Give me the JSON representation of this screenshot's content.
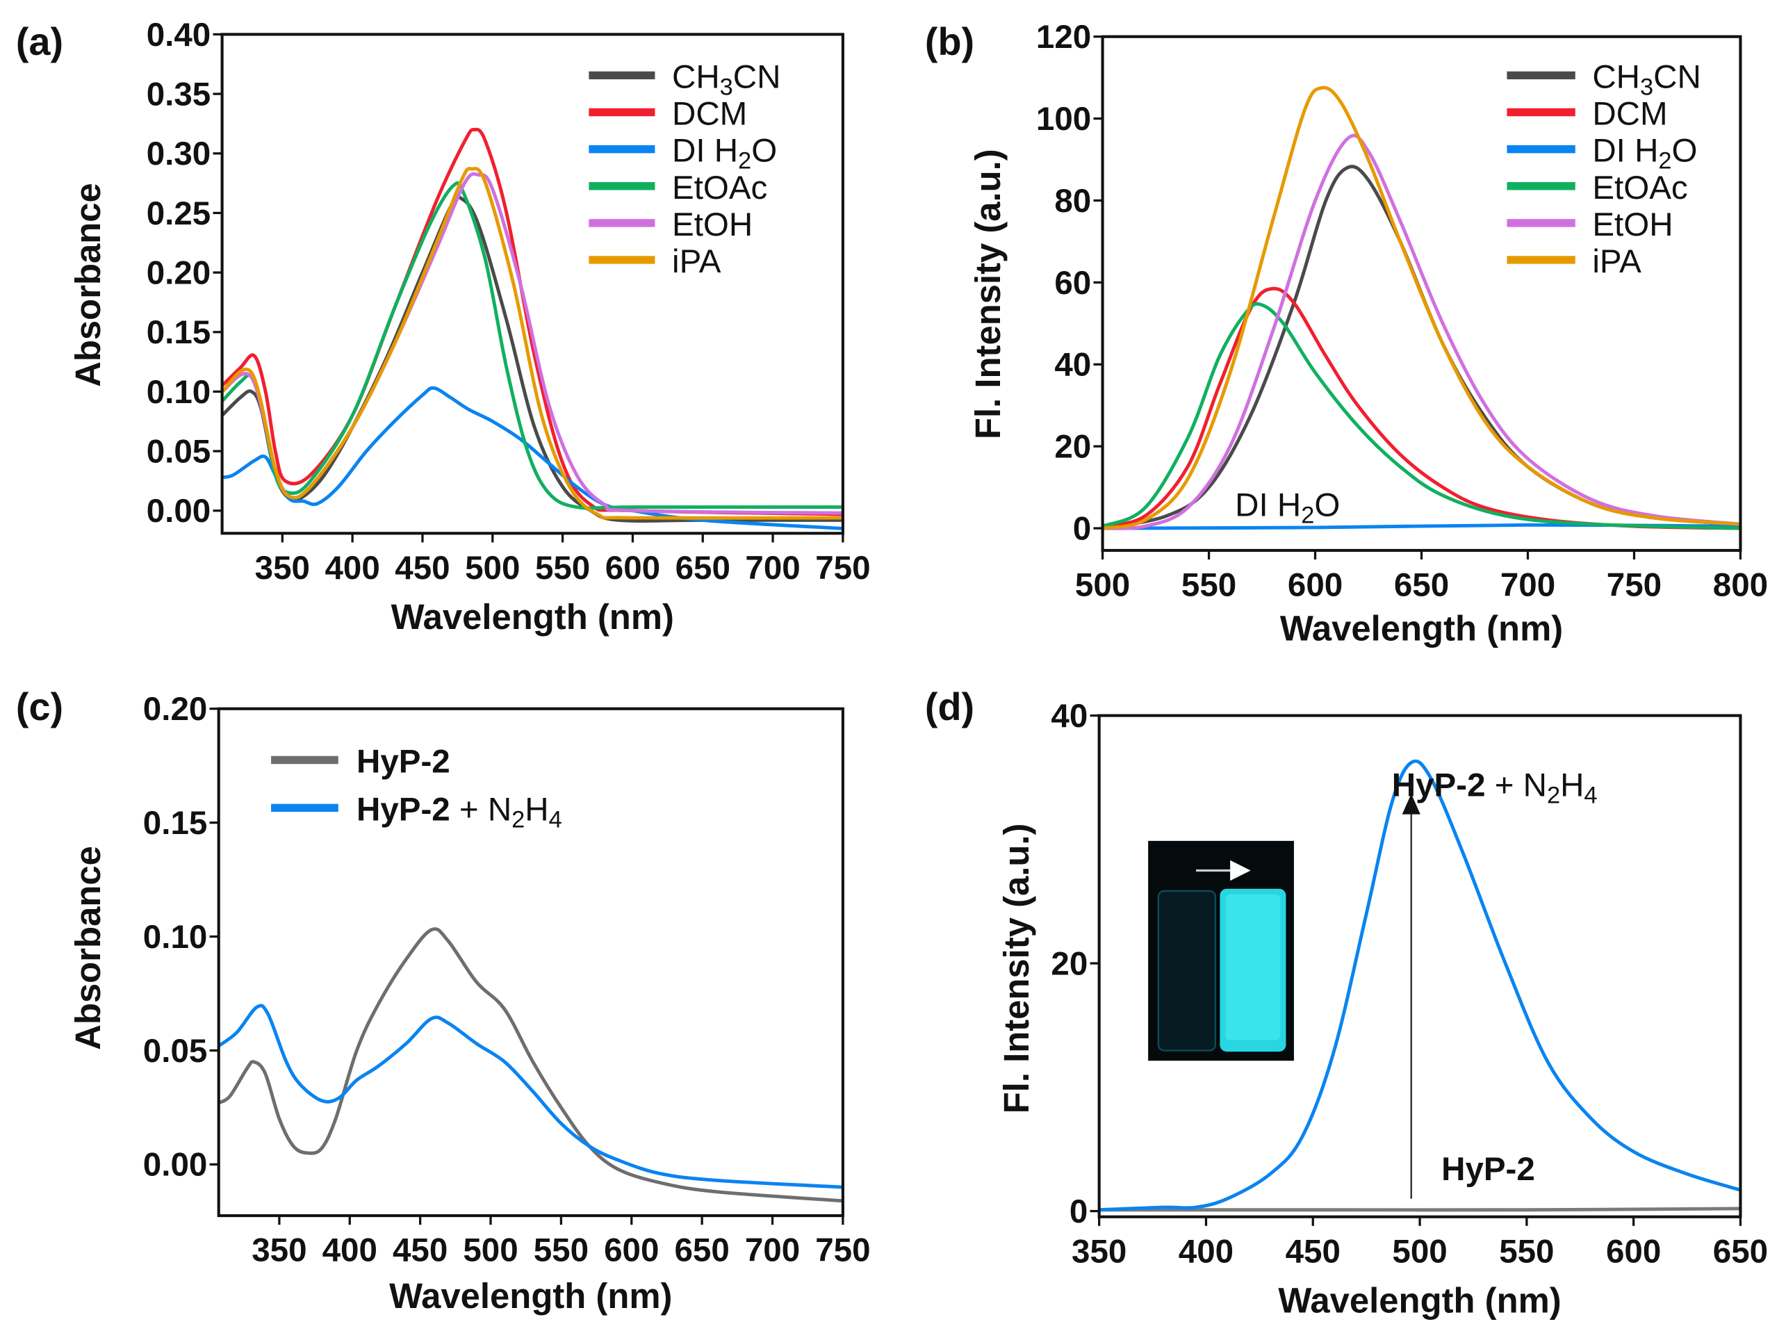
{
  "chart_data": [
    {
      "panel": "(a)",
      "type": "line",
      "xlabel": "Wavelength (nm)",
      "ylabel": "Absorbance",
      "xlim": [
        307,
        750
      ],
      "ylim": [
        -0.019,
        0.4
      ],
      "xticks": [
        "350",
        "400",
        "450",
        "500",
        "550",
        "600",
        "650",
        "700",
        "750"
      ],
      "yticks": [
        "0.00",
        "0.05",
        "0.10",
        "0.15",
        "0.20",
        "0.25",
        "0.30",
        "0.35",
        "0.40"
      ],
      "legend_position": "top-right",
      "legend_bold": false,
      "series": [
        {
          "name": "CH3CN",
          "label": [
            {
              "t": "CH"
            },
            {
              "t": "3",
              "sub": true
            },
            {
              "t": "CN"
            }
          ],
          "color": "#4a4a4a",
          "x": [
            307,
            320,
            328,
            335,
            345,
            355,
            365,
            380,
            400,
            425,
            450,
            470,
            478,
            490,
            510,
            530,
            550,
            570,
            590,
            650,
            750
          ],
          "y": [
            0.08,
            0.095,
            0.1,
            0.085,
            0.03,
            0.01,
            0.012,
            0.03,
            0.07,
            0.13,
            0.2,
            0.255,
            0.262,
            0.24,
            0.16,
            0.07,
            0.02,
            0.0,
            -0.008,
            -0.008,
            -0.008
          ]
        },
        {
          "name": "DCM",
          "label": [
            {
              "t": "DCM"
            }
          ],
          "color": "#f0202f",
          "x": [
            307,
            320,
            330,
            338,
            345,
            352,
            370,
            400,
            430,
            460,
            480,
            487,
            495,
            510,
            530,
            550,
            570,
            600,
            750
          ],
          "y": [
            0.105,
            0.12,
            0.13,
            0.1,
            0.05,
            0.025,
            0.03,
            0.08,
            0.17,
            0.26,
            0.31,
            0.32,
            0.31,
            0.25,
            0.13,
            0.04,
            0.005,
            0.0,
            -0.003
          ]
        },
        {
          "name": "DI H2O",
          "label": [
            {
              "t": "DI H"
            },
            {
              "t": "2",
              "sub": true
            },
            {
              "t": "O"
            }
          ],
          "color": "#0a84f0",
          "x": [
            307,
            315,
            330,
            338,
            345,
            355,
            365,
            375,
            390,
            410,
            430,
            450,
            458,
            470,
            483,
            500,
            520,
            540,
            560,
            580,
            600,
            650,
            750
          ],
          "y": [
            0.028,
            0.03,
            0.042,
            0.045,
            0.03,
            0.01,
            0.008,
            0.006,
            0.02,
            0.05,
            0.075,
            0.097,
            0.103,
            0.095,
            0.085,
            0.075,
            0.06,
            0.04,
            0.02,
            0.005,
            0.0,
            -0.008,
            -0.015
          ]
        },
        {
          "name": "EtOAc",
          "label": [
            {
              "t": "EtOAc"
            }
          ],
          "color": "#10b060",
          "x": [
            307,
            320,
            328,
            335,
            345,
            355,
            370,
            400,
            430,
            455,
            472,
            480,
            495,
            510,
            525,
            540,
            560,
            600,
            750
          ],
          "y": [
            0.092,
            0.108,
            0.113,
            0.09,
            0.03,
            0.015,
            0.025,
            0.08,
            0.17,
            0.24,
            0.273,
            0.265,
            0.21,
            0.12,
            0.05,
            0.015,
            0.003,
            0.003,
            0.003
          ]
        },
        {
          "name": "EtOH",
          "label": [
            {
              "t": "EtOH"
            }
          ],
          "color": "#d070e0",
          "x": [
            307,
            328,
            345,
            355,
            370,
            400,
            430,
            460,
            480,
            490,
            500,
            520,
            540,
            560,
            580,
            600,
            750
          ],
          "y": [
            0.1,
            0.112,
            0.035,
            0.012,
            0.02,
            0.07,
            0.14,
            0.22,
            0.275,
            0.282,
            0.27,
            0.19,
            0.09,
            0.03,
            0.005,
            0.0,
            -0.002
          ]
        },
        {
          "name": "iPA",
          "label": [
            {
              "t": "iPA"
            }
          ],
          "color": "#e69a00",
          "x": [
            307,
            328,
            345,
            355,
            370,
            400,
            430,
            460,
            478,
            485,
            495,
            515,
            535,
            555,
            575,
            600,
            750
          ],
          "y": [
            0.1,
            0.116,
            0.035,
            0.012,
            0.02,
            0.07,
            0.14,
            0.225,
            0.278,
            0.287,
            0.275,
            0.19,
            0.08,
            0.02,
            -0.003,
            -0.006,
            -0.006
          ]
        }
      ],
      "annotations": []
    },
    {
      "panel": "(b)",
      "type": "line",
      "xlabel": "Wavelength (nm)",
      "ylabel": "Fl. Intensity (a.u.)",
      "xlim": [
        500,
        800
      ],
      "ylim": [
        -5.4,
        120
      ],
      "xticks": [
        "500",
        "550",
        "600",
        "650",
        "700",
        "750",
        "800"
      ],
      "yticks": [
        "0",
        "20",
        "40",
        "60",
        "80",
        "100",
        "120"
      ],
      "legend_position": "top-right",
      "legend_bold": false,
      "series": [
        {
          "name": "CH3CN",
          "label": [
            {
              "t": "CH"
            },
            {
              "t": "3",
              "sub": true
            },
            {
              "t": "CN"
            }
          ],
          "color": "#4a4a4a",
          "x": [
            500,
            530,
            550,
            570,
            590,
            605,
            615,
            625,
            640,
            660,
            680,
            700,
            730,
            760,
            800
          ],
          "y": [
            0,
            3,
            10,
            28,
            55,
            80,
            88,
            85,
            70,
            45,
            27,
            15,
            6,
            2.5,
            1
          ]
        },
        {
          "name": "DCM",
          "label": [
            {
              "t": "DCM"
            }
          ],
          "color": "#f0202f",
          "x": [
            500,
            520,
            540,
            555,
            570,
            580,
            590,
            605,
            620,
            640,
            660,
            680,
            710,
            750,
            800
          ],
          "y": [
            0.5,
            3,
            15,
            35,
            54,
            58.5,
            55,
            42,
            30,
            18,
            10,
            5,
            2,
            0.5,
            0
          ]
        },
        {
          "name": "DI H2O",
          "label": [
            {
              "t": "DI H"
            },
            {
              "t": "2",
              "sub": true
            },
            {
              "t": "O"
            }
          ],
          "color": "#0a84f0",
          "x": [
            500,
            600,
            700,
            800
          ],
          "y": [
            0,
            0.2,
            0.8,
            0.5
          ]
        },
        {
          "name": "EtOAc",
          "label": [
            {
              "t": "EtOAc"
            }
          ],
          "color": "#10b060",
          "x": [
            500,
            520,
            540,
            555,
            568,
            575,
            585,
            600,
            620,
            640,
            660,
            690,
            730,
            800
          ],
          "y": [
            0.5,
            5,
            22,
            42,
            53,
            54.5,
            50,
            38,
            25,
            15,
            8,
            3,
            1,
            0
          ]
        },
        {
          "name": "EtOH",
          "label": [
            {
              "t": "EtOH"
            }
          ],
          "color": "#d070e0",
          "x": [
            500,
            520,
            540,
            560,
            580,
            600,
            615,
            625,
            640,
            660,
            680,
            700,
            730,
            760,
            800
          ],
          "y": [
            0,
            0.5,
            5,
            20,
            48,
            80,
            95,
            92,
            75,
            50,
            30,
            17,
            7,
            3,
            1
          ]
        },
        {
          "name": "iPA",
          "label": [
            {
              "t": "iPA"
            }
          ],
          "color": "#e69a00",
          "x": [
            500,
            520,
            540,
            560,
            580,
            595,
            603,
            612,
            625,
            640,
            660,
            680,
            700,
            730,
            760,
            800
          ],
          "y": [
            0,
            2,
            12,
            38,
            75,
            102,
            107.5,
            104,
            90,
            70,
            45,
            26,
            15,
            6,
            2.5,
            1
          ]
        }
      ],
      "annotations": [
        {
          "label": [
            {
              "t": "DI H"
            },
            {
              "t": "2",
              "sub": true
            },
            {
              "t": "O"
            }
          ],
          "x": 587,
          "y": 3,
          "bold": false
        }
      ]
    },
    {
      "panel": "(c)",
      "type": "line",
      "xlabel": "Wavelength (nm)",
      "ylabel": "Absorbance",
      "xlim": [
        307,
        750
      ],
      "ylim": [
        -0.0225,
        0.2
      ],
      "xticks": [
        "350",
        "400",
        "450",
        "500",
        "550",
        "600",
        "650",
        "700",
        "750"
      ],
      "yticks": [
        "0.00",
        "0.05",
        "0.10",
        "0.15",
        "0.20"
      ],
      "legend_position": "top-left",
      "legend_bold": true,
      "series": [
        {
          "name": "HyP-2",
          "label": [
            {
              "t": "HyP-2",
              "b": true
            }
          ],
          "color": "#6e6e6e",
          "x": [
            307,
            315,
            327,
            332,
            340,
            350,
            360,
            370,
            380,
            390,
            405,
            420,
            440,
            458,
            470,
            490,
            510,
            530,
            550,
            570,
            590,
            620,
            660,
            750
          ],
          "y": [
            0.027,
            0.03,
            0.042,
            0.045,
            0.04,
            0.02,
            0.008,
            0.005,
            0.007,
            0.02,
            0.05,
            0.07,
            0.09,
            0.103,
            0.098,
            0.08,
            0.068,
            0.045,
            0.025,
            0.008,
            -0.002,
            -0.008,
            -0.012,
            -0.016
          ]
        },
        {
          "name": "HyP-2 + N2H4",
          "label": [
            {
              "t": "HyP-2",
              "b": true
            },
            {
              "t": " + N"
            },
            {
              "t": "2",
              "sub": true
            },
            {
              "t": "H"
            },
            {
              "t": "4",
              "sub": true
            }
          ],
          "color": "#0a84f0",
          "x": [
            307,
            320,
            334,
            342,
            355,
            365,
            380,
            392,
            405,
            420,
            440,
            458,
            470,
            490,
            510,
            530,
            550,
            570,
            590,
            620,
            660,
            750
          ],
          "y": [
            0.052,
            0.058,
            0.069,
            0.066,
            0.045,
            0.035,
            0.028,
            0.029,
            0.037,
            0.043,
            0.053,
            0.064,
            0.062,
            0.053,
            0.045,
            0.032,
            0.018,
            0.008,
            0.002,
            -0.004,
            -0.007,
            -0.01
          ]
        }
      ],
      "annotations": []
    },
    {
      "panel": "(d)",
      "type": "line",
      "xlabel": "Wavelength (nm)",
      "ylabel": "Fl. Intensity (a.u.)",
      "xlim": [
        350,
        650
      ],
      "ylim": [
        -0.46,
        40
      ],
      "xticks": [
        "350",
        "400",
        "450",
        "500",
        "550",
        "600",
        "650"
      ],
      "yticks": [
        "0",
        "20",
        "40"
      ],
      "legend_position": "none",
      "legend_bold": true,
      "series": [
        {
          "name": "HyP-2",
          "color": "#7a7a7a",
          "x": [
            350,
            450,
            550,
            650
          ],
          "y": [
            0.1,
            0.1,
            0.1,
            0.2
          ]
        },
        {
          "name": "HyP-2 + N2H4",
          "color": "#0a84f0",
          "x": [
            350,
            380,
            395,
            410,
            430,
            445,
            460,
            475,
            487,
            496,
            505,
            520,
            540,
            560,
            580,
            600,
            625,
            650
          ],
          "y": [
            0.1,
            0.3,
            0.3,
            1,
            3,
            6,
            13,
            24,
            33,
            36.2,
            35,
            29,
            20,
            12,
            7.5,
            4.8,
            3,
            1.7
          ]
        }
      ],
      "annotations": [
        {
          "label": [
            {
              "t": "HyP-2",
              "b": true
            },
            {
              "t": " + N"
            },
            {
              "t": "2",
              "sub": true
            },
            {
              "t": "H"
            },
            {
              "t": "4",
              "sub": true
            }
          ],
          "x": 535,
          "y": 33.5,
          "bold": false
        },
        {
          "label": [
            {
              "t": "HyP-2",
              "b": true
            }
          ],
          "x": 532,
          "y": 2.5,
          "bold": true
        }
      ],
      "arrow": {
        "x": 496,
        "from": 1,
        "to": 33.5
      },
      "inset": "vial photo: left vial dark, right vial bright cyan under UV"
    }
  ]
}
